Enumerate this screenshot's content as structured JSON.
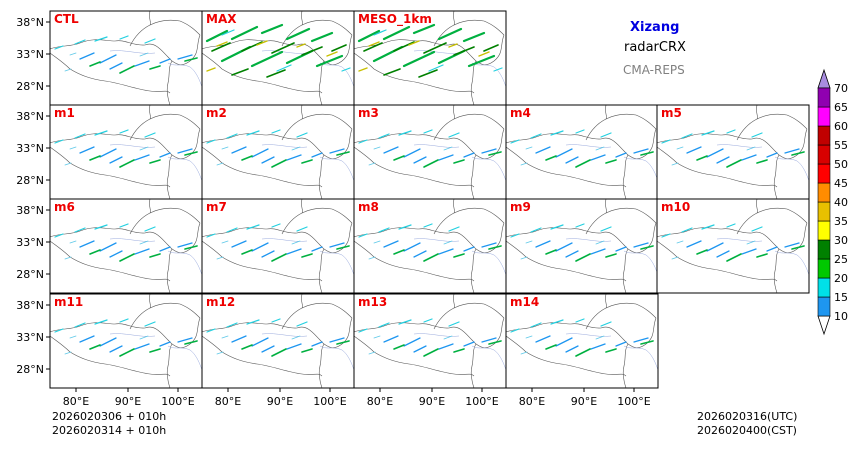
{
  "header": {
    "region": "Xizang",
    "product": "radarCRX",
    "system": "CMA-REPS"
  },
  "panels": [
    "CTL",
    "MAX",
    "MESO_1km",
    "m1",
    "m2",
    "m3",
    "m4",
    "m5",
    "m6",
    "m7",
    "m8",
    "m9",
    "m10",
    "m11",
    "m12",
    "m13",
    "m14"
  ],
  "footer": {
    "init_line1": "2026020306  +  010h",
    "init_line2": "2026020314  +  010h",
    "valid_utc": "2026020316(UTC)",
    "valid_cst": "2026020400(CST)"
  },
  "chart_data": {
    "type": "heatmap",
    "title": "Xizang radarCRX CMA-REPS",
    "y_ticks": [
      "38°N",
      "33°N",
      "28°N"
    ],
    "x_ticks": [
      "80°E",
      "90°E",
      "100°E"
    ],
    "xlim_deg_e": [
      75,
      105
    ],
    "ylim_deg_n": [
      26,
      40
    ],
    "colorbar": {
      "levels": [
        10,
        15,
        20,
        25,
        30,
        35,
        40,
        45,
        50,
        55,
        60,
        65,
        70
      ],
      "labels": [
        "10",
        "15",
        "20",
        "25",
        "30",
        "35",
        "40",
        "45",
        "50",
        "55",
        "60",
        "65",
        "70"
      ],
      "colors": [
        "#1e96f0",
        "#00e0e8",
        "#00c800",
        "#008000",
        "#ffff00",
        "#e8c000",
        "#ff8c00",
        "#ff0000",
        "#d80000",
        "#c00000",
        "#ff00ff",
        "#9000b0"
      ],
      "over_color": "#a88ce0",
      "under_color": "#ffffff"
    }
  }
}
